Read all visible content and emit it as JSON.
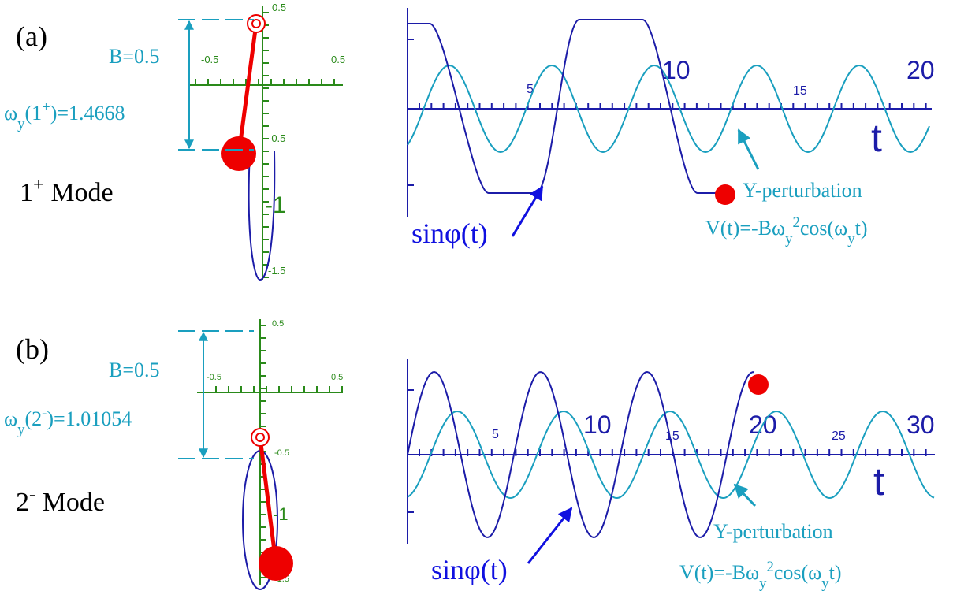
{
  "panels": [
    {
      "label": "(a)",
      "b_label": "B=0.5",
      "omega": {
        "symbol": "ω",
        "sub": "y",
        "mode": "(1",
        "sup": "+",
        "value": ")=1.4668"
      },
      "mode_name": {
        "number": "1",
        "sup": "+",
        "text": " Mode"
      },
      "pendulum_ticks": [
        "0.5",
        "-0.5",
        "0.5",
        "-0.5",
        "-1",
        "-1.5"
      ],
      "time_ticks": [
        "5",
        "10",
        "15",
        "20"
      ],
      "time_axis": "t",
      "curve_label": "sinφ(t)",
      "perturbation_label": "Y-perturbation",
      "formula": [
        "V(t)=-Bω",
        "y",
        "2",
        "cos(ω",
        "y",
        "t)"
      ]
    },
    {
      "label": "(b)",
      "b_label": "B=0.5",
      "omega": {
        "symbol": "ω",
        "sub": "y",
        "mode": "(2",
        "sup": "-",
        "value": ")=1.01054"
      },
      "mode_name": {
        "number": "2",
        "sup": "-",
        "text": " Mode"
      },
      "pendulum_ticks": [
        "0.5",
        "-0.5",
        "0.5",
        "-0.5",
        "-1",
        "-1.5"
      ],
      "time_ticks": [
        "5",
        "10",
        "15",
        "20",
        "25",
        "30"
      ],
      "time_axis": "t",
      "curve_label": "sinφ(t)",
      "perturbation_label": "Y-perturbation",
      "formula": [
        "V(t)=-Bω",
        "y",
        "2",
        "cos(ω",
        "y",
        "t)"
      ]
    }
  ]
}
